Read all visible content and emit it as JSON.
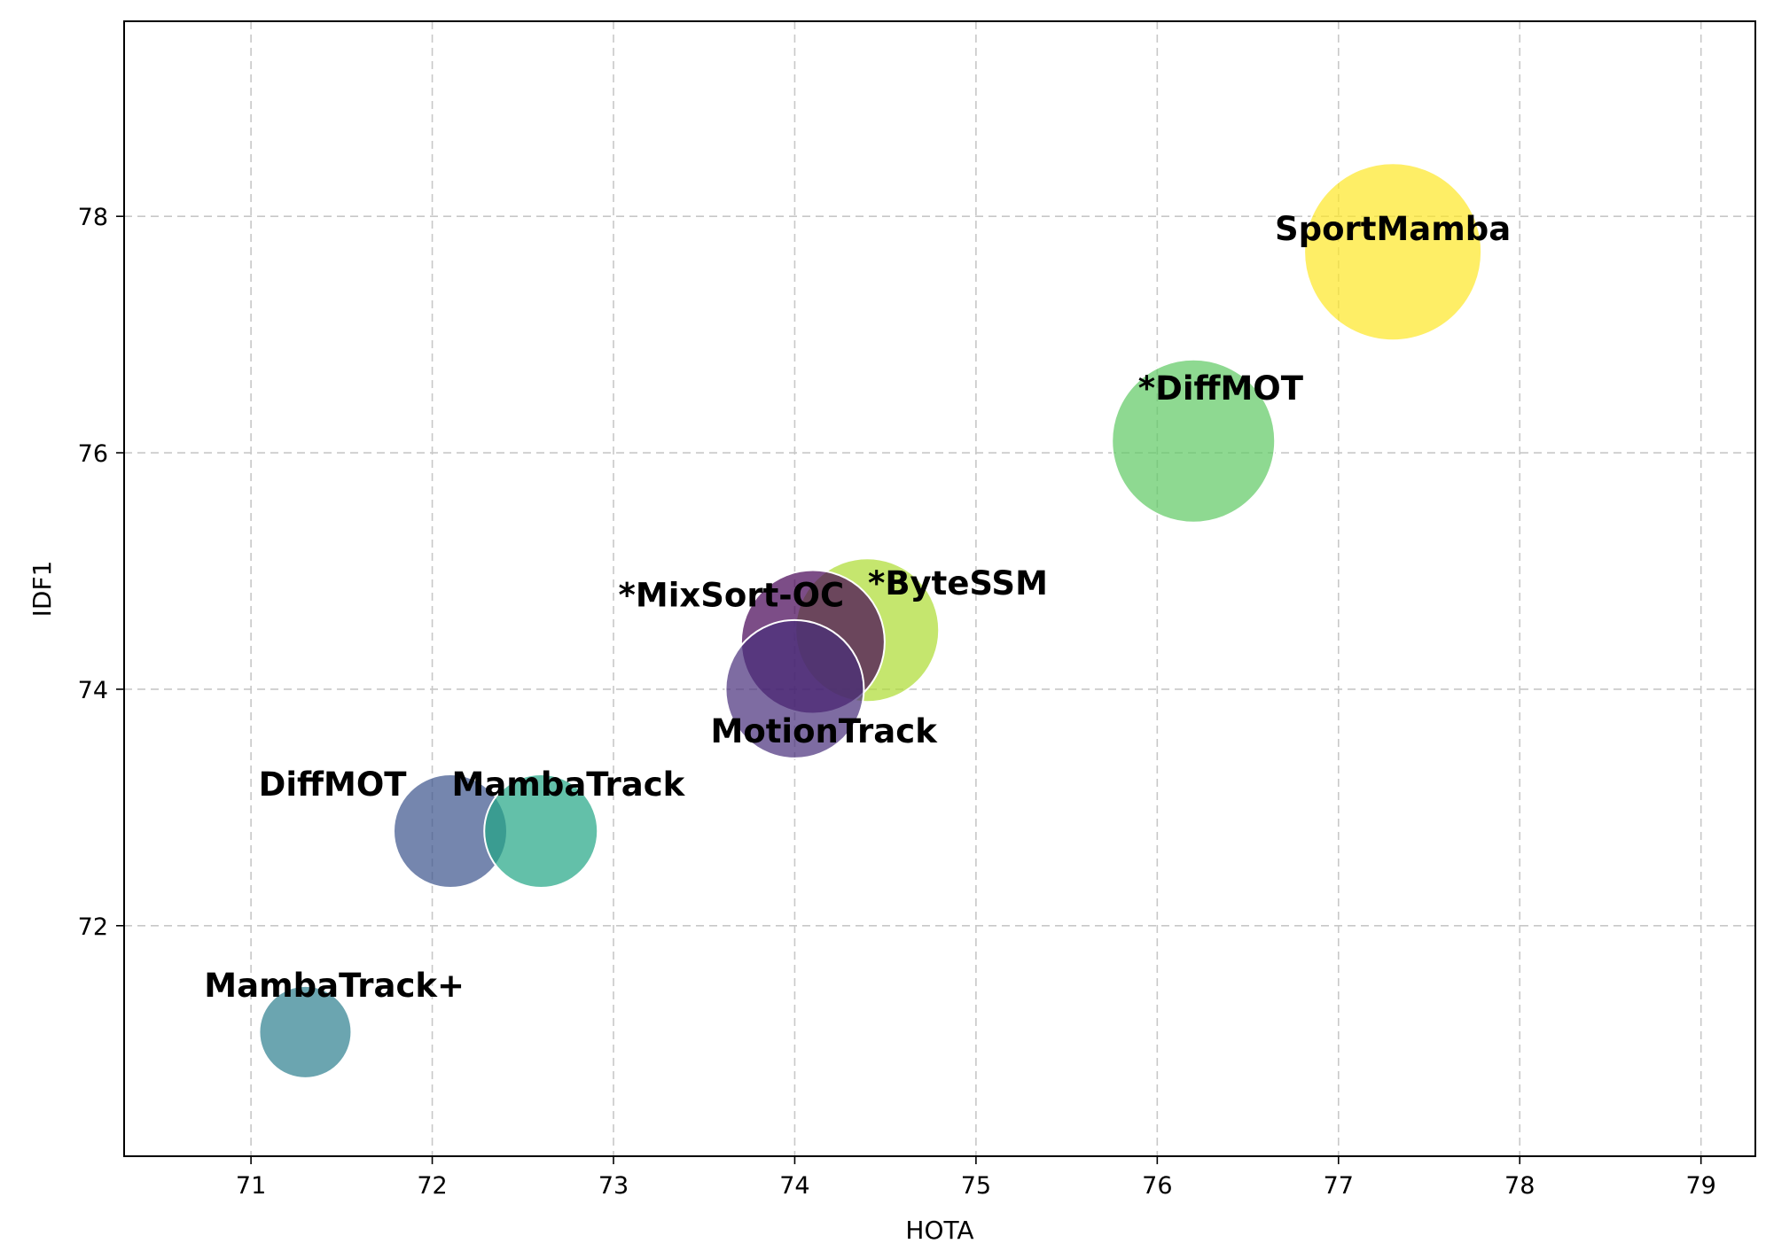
{
  "chart_data": {
    "type": "scatter",
    "title": "",
    "xlabel": "HOTA",
    "ylabel": "IDF1",
    "xlim": [
      70.3,
      79.3
    ],
    "ylim": [
      70.05,
      79.65
    ],
    "xticks": [
      71,
      72,
      73,
      74,
      75,
      76,
      77,
      78,
      79
    ],
    "yticks": [
      72,
      74,
      76,
      78
    ],
    "grid": true,
    "legend": "none",
    "points": [
      {
        "label": "SportMamba",
        "x": 77.3,
        "y": 77.7,
        "size": 1.0,
        "color": "#fde725",
        "label_anchor": "middle",
        "label_dx_data": 0.0,
        "label_dy_data": 0.1
      },
      {
        "label": "*DiffMOT",
        "x": 76.2,
        "y": 76.1,
        "size": 0.92,
        "color": "#5ec962",
        "label_anchor": "middle",
        "label_dx_data": 0.15,
        "label_dy_data": 0.35
      },
      {
        "label": "*ByteSSM",
        "x": 74.4,
        "y": 74.5,
        "size": 0.81,
        "color": "#addc30",
        "label_anchor": "middle",
        "label_dx_data": 0.5,
        "label_dy_data": 0.3
      },
      {
        "label": "*MixSort-OC",
        "x": 74.1,
        "y": 74.4,
        "size": 0.81,
        "color": "#440154",
        "label_anchor": "middle",
        "label_dx_data": -0.45,
        "label_dy_data": 0.3
      },
      {
        "label": "MotionTrack",
        "x": 74.0,
        "y": 74.0,
        "size": 0.78,
        "color": "#472d7b",
        "label_anchor": "middle",
        "label_dx_data": 0.16,
        "label_dy_data": -0.45
      },
      {
        "label": "DiffMOT",
        "x": 72.1,
        "y": 72.8,
        "size": 0.64,
        "color": "#3b528b",
        "label_anchor": "middle",
        "label_dx_data": -0.65,
        "label_dy_data": 0.3
      },
      {
        "label": "MambaTrack",
        "x": 72.6,
        "y": 72.8,
        "size": 0.64,
        "color": "#21a585",
        "label_anchor": "middle",
        "label_dx_data": 0.15,
        "label_dy_data": 0.3
      },
      {
        "label": "MambaTrack+",
        "x": 71.3,
        "y": 71.1,
        "size": 0.52,
        "color": "#2c7f8e",
        "label_anchor": "middle",
        "label_dx_data": 0.16,
        "label_dy_data": 0.3
      }
    ]
  }
}
